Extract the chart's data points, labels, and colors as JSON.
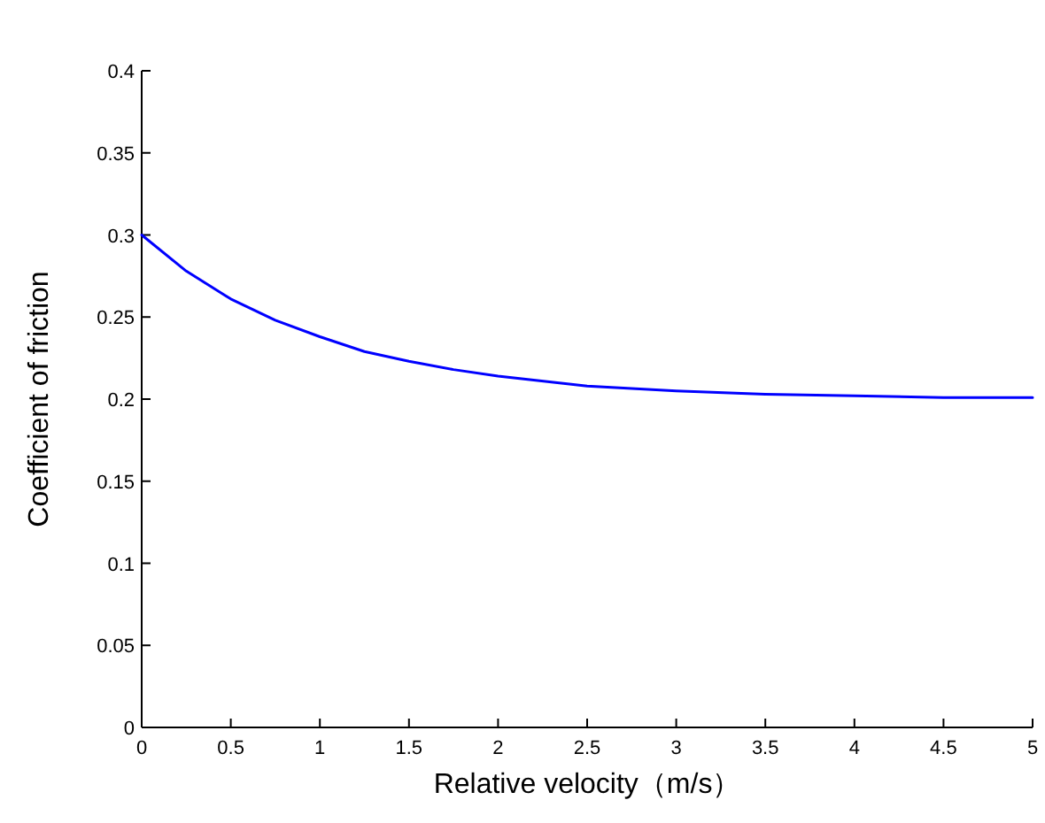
{
  "chart_data": {
    "type": "line",
    "xlabel": "Relative velocity（m/s）",
    "ylabel": "Coefficient of friction",
    "x": [
      0,
      0.25,
      0.5,
      0.75,
      1,
      1.25,
      1.5,
      1.75,
      2,
      2.5,
      3,
      3.5,
      4,
      4.5,
      5
    ],
    "series": [
      {
        "color": "#0000ff",
        "values": [
          0.3,
          0.278,
          0.261,
          0.248,
          0.238,
          0.229,
          0.223,
          0.218,
          0.214,
          0.208,
          0.205,
          0.203,
          0.202,
          0.201,
          0.201
        ]
      }
    ],
    "xlim": [
      0,
      5
    ],
    "ylim": [
      0,
      0.4
    ],
    "xticks": [
      0,
      0.5,
      1,
      1.5,
      2,
      2.5,
      3,
      3.5,
      4,
      4.5,
      5
    ],
    "yticks": [
      0,
      0.05,
      0.1,
      0.15,
      0.2,
      0.25,
      0.3,
      0.35,
      0.4
    ],
    "grid": false,
    "marker": "none",
    "line_style": "solid"
  }
}
